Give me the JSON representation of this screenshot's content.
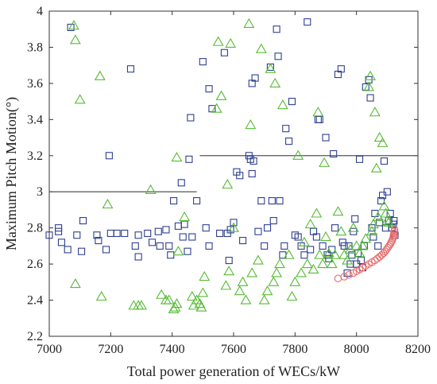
{
  "chart_data": {
    "type": "scatter",
    "title": "",
    "xlabel": "Total power generation of WECs/kW",
    "ylabel": "Maximum Pitch Motion(°)",
    "xlim": [
      7000,
      8200
    ],
    "ylim": [
      2.2,
      4.0
    ],
    "x_ticks": [
      "7000",
      "7200",
      "7400",
      "7600",
      "7800",
      "8000",
      "8200"
    ],
    "y_ticks": [
      "2.2",
      "2.4",
      "2.6",
      "2.8",
      "3",
      "3.2",
      "3.4",
      "3.6",
      "3.8",
      "4"
    ],
    "grid": false,
    "legend": "none",
    "reference_lines": [
      {
        "x": [
          7000,
          7480
        ],
        "y": 3.0
      },
      {
        "x": [
          7490,
          8200
        ],
        "y": 3.2
      }
    ],
    "series": [
      {
        "marker": "square",
        "color": "#2e3f8f",
        "points": [
          [
            7000,
            2.76
          ],
          [
            7030,
            2.78
          ],
          [
            7030,
            2.8
          ],
          [
            7040,
            2.72
          ],
          [
            7060,
            2.68
          ],
          [
            7070,
            3.91
          ],
          [
            7090,
            2.76
          ],
          [
            7110,
            2.84
          ],
          [
            7105,
            2.67
          ],
          [
            7155,
            2.76
          ],
          [
            7160,
            2.73
          ],
          [
            7185,
            2.68
          ],
          [
            7195,
            3.2
          ],
          [
            7200,
            2.77
          ],
          [
            7220,
            2.77
          ],
          [
            7245,
            2.77
          ],
          [
            7265,
            3.68
          ],
          [
            7280,
            2.7
          ],
          [
            7290,
            2.64
          ],
          [
            7290,
            2.76
          ],
          [
            7320,
            2.77
          ],
          [
            7335,
            2.72
          ],
          [
            7355,
            2.78
          ],
          [
            7360,
            2.7
          ],
          [
            7380,
            2.79
          ],
          [
            7390,
            2.7
          ],
          [
            7395,
            2.65
          ],
          [
            7405,
            2.95
          ],
          [
            7420,
            2.81
          ],
          [
            7430,
            3.05
          ],
          [
            7435,
            2.75
          ],
          [
            7440,
            2.82
          ],
          [
            7450,
            2.67
          ],
          [
            7455,
            3.18
          ],
          [
            7460,
            3.41
          ],
          [
            7465,
            2.75
          ],
          [
            7480,
            2.95
          ],
          [
            7500,
            3.72
          ],
          [
            7510,
            2.8
          ],
          [
            7520,
            2.7
          ],
          [
            7520,
            3.57
          ],
          [
            7530,
            3.46
          ],
          [
            7555,
            2.77
          ],
          [
            7570,
            3.77
          ],
          [
            7580,
            2.77
          ],
          [
            7585,
            2.62
          ],
          [
            7590,
            2.79
          ],
          [
            7600,
            2.83
          ],
          [
            7610,
            3.11
          ],
          [
            7620,
            3.09
          ],
          [
            7630,
            2.73
          ],
          [
            7650,
            3.2
          ],
          [
            7655,
            3.18
          ],
          [
            7660,
            3.6
          ],
          [
            7660,
            3.1
          ],
          [
            7665,
            3.17
          ],
          [
            7670,
            3.63
          ],
          [
            7680,
            2.78
          ],
          [
            7690,
            2.95
          ],
          [
            7700,
            2.7
          ],
          [
            7710,
            2.8
          ],
          [
            7720,
            3.69
          ],
          [
            7725,
            2.95
          ],
          [
            7730,
            2.84
          ],
          [
            7740,
            3.9
          ],
          [
            7745,
            3.75
          ],
          [
            7750,
            2.95
          ],
          [
            7760,
            2.65
          ],
          [
            7765,
            2.7
          ],
          [
            7770,
            3.35
          ],
          [
            7780,
            3.28
          ],
          [
            7790,
            3.5
          ],
          [
            7800,
            2.76
          ],
          [
            7810,
            2.75
          ],
          [
            7820,
            2.7
          ],
          [
            7830,
            2.65
          ],
          [
            7840,
            3.94
          ],
          [
            7850,
            2.68
          ],
          [
            7860,
            2.78
          ],
          [
            7870,
            2.75
          ],
          [
            7875,
            3.4
          ],
          [
            7880,
            3.4
          ],
          [
            7890,
            2.7
          ],
          [
            7900,
            3.3
          ],
          [
            7905,
            2.65
          ],
          [
            7910,
            2.63
          ],
          [
            7920,
            2.68
          ],
          [
            7925,
            3.21
          ],
          [
            7930,
            2.8
          ],
          [
            7940,
            3.65
          ],
          [
            7950,
            3.68
          ],
          [
            7955,
            2.72
          ],
          [
            7960,
            2.7
          ],
          [
            7970,
            2.55
          ],
          [
            7975,
            2.7
          ],
          [
            7980,
            2.6
          ],
          [
            7985,
            2.65
          ],
          [
            7990,
            2.78
          ],
          [
            7995,
            2.85
          ],
          [
            8000,
            2.6
          ],
          [
            8005,
            2.66
          ],
          [
            8010,
            3.18
          ],
          [
            8015,
            2.62
          ],
          [
            8020,
            2.58
          ],
          [
            8025,
            2.7
          ],
          [
            8030,
            3.58
          ],
          [
            8040,
            3.62
          ],
          [
            8045,
            3.52
          ],
          [
            8050,
            2.8
          ],
          [
            8055,
            2.75
          ],
          [
            8060,
            2.88
          ],
          [
            8070,
            2.7
          ],
          [
            8075,
            2.83
          ],
          [
            8080,
            2.95
          ],
          [
            8085,
            2.98
          ],
          [
            8090,
            3.17
          ],
          [
            8095,
            2.8
          ],
          [
            8100,
            3.0
          ],
          [
            8105,
            2.84
          ],
          [
            8110,
            2.88
          ],
          [
            8115,
            2.8
          ],
          [
            8120,
            2.82
          ],
          [
            8122,
            2.84
          ],
          [
            8125,
            2.76
          ]
        ]
      },
      {
        "marker": "triangle",
        "color": "#55bb33",
        "points": [
          [
            7080,
            3.92
          ],
          [
            7085,
            3.84
          ],
          [
            7085,
            2.49
          ],
          [
            7100,
            3.51
          ],
          [
            7170,
            2.42
          ],
          [
            7165,
            3.64
          ],
          [
            7190,
            2.93
          ],
          [
            7275,
            2.37
          ],
          [
            7290,
            2.37
          ],
          [
            7300,
            2.37
          ],
          [
            7330,
            3.01
          ],
          [
            7365,
            2.43
          ],
          [
            7380,
            2.4
          ],
          [
            7390,
            2.4
          ],
          [
            7405,
            2.35
          ],
          [
            7410,
            2.36
          ],
          [
            7415,
            2.38
          ],
          [
            7415,
            3.19
          ],
          [
            7420,
            2.67
          ],
          [
            7440,
            2.86
          ],
          [
            7465,
            2.42
          ],
          [
            7470,
            2.37
          ],
          [
            7480,
            2.4
          ],
          [
            7490,
            2.38
          ],
          [
            7495,
            2.36
          ],
          [
            7500,
            2.44
          ],
          [
            7505,
            2.53
          ],
          [
            7545,
            3.46
          ],
          [
            7550,
            3.83
          ],
          [
            7560,
            3.53
          ],
          [
            7575,
            2.48
          ],
          [
            7580,
            3.04
          ],
          [
            7585,
            2.56
          ],
          [
            7590,
            3.82
          ],
          [
            7600,
            2.8
          ],
          [
            7620,
            2.45
          ],
          [
            7630,
            2.5
          ],
          [
            7640,
            2.4
          ],
          [
            7650,
            3.93
          ],
          [
            7655,
            3.37
          ],
          [
            7660,
            2.55
          ],
          [
            7680,
            2.62
          ],
          [
            7690,
            3.79
          ],
          [
            7700,
            2.4
          ],
          [
            7710,
            2.45
          ],
          [
            7720,
            3.68
          ],
          [
            7730,
            2.5
          ],
          [
            7735,
            3.6
          ],
          [
            7740,
            2.55
          ],
          [
            7750,
            2.6
          ],
          [
            7760,
            3.48
          ],
          [
            7780,
            2.65
          ],
          [
            7790,
            2.42
          ],
          [
            7800,
            2.5
          ],
          [
            7810,
            3.2
          ],
          [
            7820,
            2.55
          ],
          [
            7830,
            2.72
          ],
          [
            7840,
            2.6
          ],
          [
            7850,
            2.82
          ],
          [
            7860,
            2.57
          ],
          [
            7870,
            2.88
          ],
          [
            7875,
            3.44
          ],
          [
            7880,
            2.65
          ],
          [
            7890,
            2.6
          ],
          [
            7895,
            3.16
          ],
          [
            7900,
            2.75
          ],
          [
            7910,
            2.66
          ],
          [
            7920,
            2.6
          ],
          [
            7930,
            2.65
          ],
          [
            7940,
            2.89
          ],
          [
            7950,
            2.78
          ],
          [
            7960,
            2.65
          ],
          [
            7970,
            2.62
          ],
          [
            7980,
            2.68
          ],
          [
            7990,
            2.8
          ],
          [
            8000,
            2.7
          ],
          [
            8010,
            2.66
          ],
          [
            8020,
            2.7
          ],
          [
            8030,
            2.74
          ],
          [
            8040,
            3.58
          ],
          [
            8045,
            3.64
          ],
          [
            8050,
            2.78
          ],
          [
            8055,
            2.82
          ],
          [
            8060,
            3.44
          ],
          [
            8065,
            3.13
          ],
          [
            8070,
            2.86
          ],
          [
            8075,
            3.3
          ],
          [
            8085,
            3.27
          ],
          [
            8090,
            2.92
          ],
          [
            8095,
            2.88
          ],
          [
            8100,
            2.84
          ],
          [
            8105,
            2.83
          ]
        ]
      },
      {
        "marker": "circle",
        "color": "#e96a6a",
        "points": [
          [
            7940,
            2.52
          ],
          [
            7960,
            2.53
          ],
          [
            7975,
            2.54
          ],
          [
            7990,
            2.55
          ],
          [
            8000,
            2.56
          ],
          [
            8010,
            2.57
          ],
          [
            8020,
            2.58
          ],
          [
            8030,
            2.59
          ],
          [
            8040,
            2.6
          ],
          [
            8050,
            2.61
          ],
          [
            8060,
            2.62
          ],
          [
            8068,
            2.63
          ],
          [
            8075,
            2.64
          ],
          [
            8082,
            2.65
          ],
          [
            8088,
            2.66
          ],
          [
            8093,
            2.67
          ],
          [
            8098,
            2.68
          ],
          [
            8102,
            2.69
          ],
          [
            8106,
            2.7
          ],
          [
            8110,
            2.71
          ],
          [
            8113,
            2.72
          ],
          [
            8116,
            2.73
          ],
          [
            8118,
            2.74
          ],
          [
            8120,
            2.75
          ],
          [
            8121,
            2.76
          ],
          [
            8122,
            2.77
          ],
          [
            8123,
            2.78
          ],
          [
            8124,
            2.79
          ]
        ]
      }
    ]
  }
}
